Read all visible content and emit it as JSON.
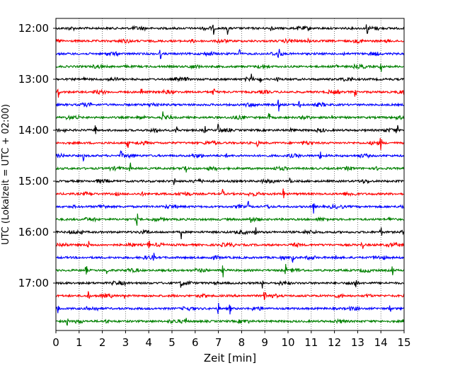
{
  "chart_data": {
    "type": "line",
    "title": "",
    "xlabel": "Zeit  [min]",
    "ylabel": "UTC (Lokalzeit = UTC + 02:00)",
    "xlim": [
      0,
      15
    ],
    "x_ticks": [
      0,
      1,
      2,
      3,
      4,
      5,
      6,
      7,
      8,
      9,
      10,
      11,
      12,
      13,
      14,
      15
    ],
    "y_tick_labels": [
      "12:00",
      "13:00",
      "14:00",
      "15:00",
      "16:00",
      "17:00"
    ],
    "trace_interval_minutes": 15,
    "grid": {
      "x": "dotted vertical lines at each minute",
      "y": false
    },
    "color_cycle": [
      "#000000",
      "#ff0000",
      "#0000ff",
      "#008000"
    ],
    "traces": [
      {
        "time": "12:00",
        "spikes_min": [
          6.8,
          7.4,
          9.3,
          13.4
        ]
      },
      {
        "time": "12:15",
        "spikes_min": [
          10.9
        ]
      },
      {
        "time": "12:30",
        "spikes_min": [
          4.5,
          7.9,
          9.6
        ]
      },
      {
        "time": "12:45",
        "spikes_min": [
          12.1,
          14.0
        ]
      },
      {
        "time": "13:00",
        "spikes_min": [
          8.4,
          8.8
        ]
      },
      {
        "time": "13:15",
        "spikes_min": [
          0.1,
          3.7,
          6.8,
          12.9
        ]
      },
      {
        "time": "13:30",
        "spikes_min": [
          9.6,
          10.5
        ]
      },
      {
        "time": "13:45",
        "spikes_min": [
          4.6,
          9.2,
          11.9
        ]
      },
      {
        "time": "14:00",
        "spikes_min": [
          1.7,
          5.2,
          6.4,
          7.0,
          14.7
        ]
      },
      {
        "time": "14:15",
        "spikes_min": [
          3.1,
          8.7,
          14.0
        ]
      },
      {
        "time": "14:30",
        "spikes_min": [
          1.2,
          2.8,
          11.4
        ]
      },
      {
        "time": "14:45",
        "spikes_min": [
          3.2,
          5.6
        ]
      },
      {
        "time": "15:00",
        "spikes_min": [
          5.1,
          10.1
        ]
      },
      {
        "time": "15:15",
        "spikes_min": [
          3.7,
          7.2,
          9.8
        ]
      },
      {
        "time": "15:30",
        "spikes_min": [
          8.3,
          11.1
        ]
      },
      {
        "time": "15:45",
        "spikes_min": [
          3.5,
          8.4
        ]
      },
      {
        "time": "16:00",
        "spikes_min": [
          5.4,
          8.6,
          14.0
        ]
      },
      {
        "time": "16:15",
        "spikes_min": [
          1.4,
          4.0,
          13.2
        ]
      },
      {
        "time": "16:30",
        "spikes_min": [
          4.2,
          10.2,
          12.1
        ]
      },
      {
        "time": "16:45",
        "spikes_min": [
          1.3,
          2.2,
          7.2,
          9.9,
          14.5
        ]
      },
      {
        "time": "17:00",
        "spikes_min": [
          5.4,
          8.9,
          12.9
        ]
      },
      {
        "time": "17:15",
        "spikes_min": [
          1.4,
          3.0,
          9.0
        ]
      },
      {
        "time": "17:30",
        "spikes_min": [
          0.1,
          7.0,
          7.5,
          14.4
        ]
      },
      {
        "time": "17:45",
        "spikes_min": [
          0.5,
          5.6
        ]
      }
    ]
  }
}
